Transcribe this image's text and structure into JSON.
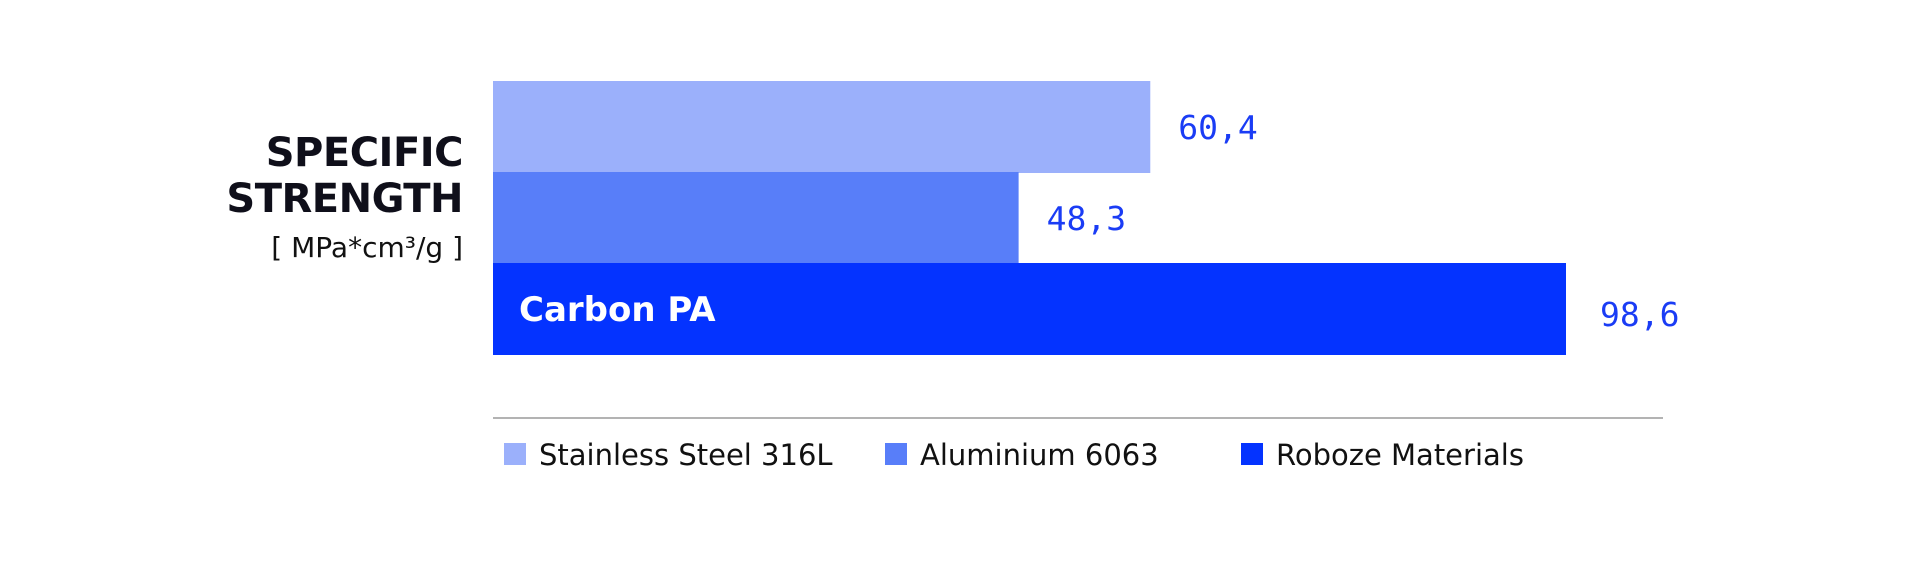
{
  "chart_data": {
    "type": "bar",
    "orientation": "horizontal",
    "title": [
      "SPECIFIC",
      "STRENGTH"
    ],
    "unit": "[ MPa*cm³/g ]",
    "series": [
      {
        "name": "Stainless Steel 316L",
        "value": 60.4,
        "label": "60,4",
        "color": "#9bb0fb",
        "bar_text": ""
      },
      {
        "name": "Aluminium 6063",
        "value": 48.3,
        "label": "48,3",
        "color": "#587ef9",
        "bar_text": ""
      },
      {
        "name": "Roboze Materials",
        "value": 98.6,
        "label": "98,6",
        "color": "#0433ff",
        "bar_text": "Carbon PA"
      }
    ],
    "value_label_color": "#1a3cf5",
    "xlim": [
      0,
      100
    ],
    "legend_position": "bottom",
    "axis_line_color": "#9a9a9a"
  }
}
